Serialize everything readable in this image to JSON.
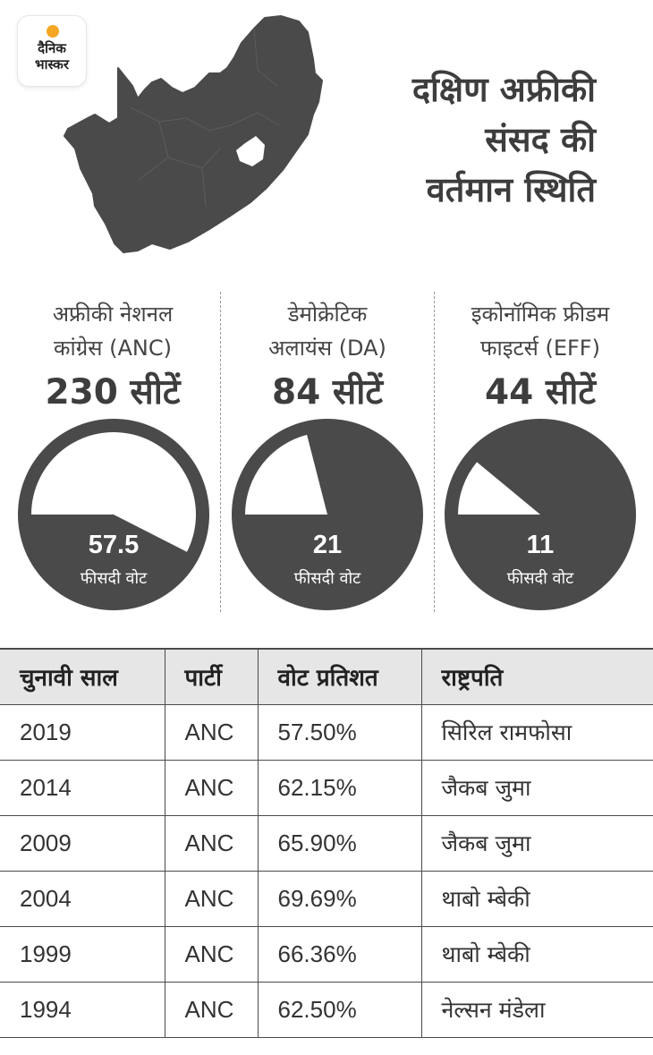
{
  "brand": {
    "line1": "दैनिक",
    "line2": "भास्कर"
  },
  "title": {
    "line1": "दक्षिण अफ्रीकी",
    "line2": "संसद की",
    "line3": "वर्तमान स्थिति"
  },
  "colors": {
    "dark": "#4a4a4a",
    "text": "#3d3d3d",
    "header_bg": "#e6e6e6",
    "logo_sun": "#f5a623"
  },
  "parties": [
    {
      "name_line1": "अफ्रीकी नेशनल",
      "name_line2": "कांग्रेस (ANC)",
      "seats": "230 सीटें",
      "vote": "57.5",
      "vote_label": "फीसदी वोट"
    },
    {
      "name_line1": "डेमोक्रेटिक",
      "name_line2": "अलायंस (DA)",
      "seats": "84 सीटें",
      "vote": "21",
      "vote_label": "फीसदी वोट"
    },
    {
      "name_line1": "इकोनॉमिक फ्रीडम",
      "name_line2": "फाइटर्स (EFF)",
      "seats": "44 सीटें",
      "vote": "11",
      "vote_label": "फीसदी वोट"
    }
  ],
  "chart_data": {
    "type": "pie",
    "categories": [
      "अफ्रीकी नेशनल कांग्रेस (ANC)",
      "डेमोक्रेटिक अलायंस (DA)",
      "इकोनॉमिक फ्रीडम फाइटर्स (EFF)"
    ],
    "values": [
      57.5,
      21,
      11
    ],
    "seats": [
      230,
      84,
      44
    ],
    "unit": "फीसदी वोट"
  },
  "table": {
    "headers": [
      "चुनावी साल",
      "पार्टी",
      "वोट प्रतिशत",
      "राष्ट्रपति"
    ],
    "rows": [
      [
        "2019",
        "ANC",
        "57.50%",
        "सिरिल रामफोसा"
      ],
      [
        "2014",
        "ANC",
        "62.15%",
        "जैकब जुमा"
      ],
      [
        "2009",
        "ANC",
        "65.90%",
        "जैकब जुमा"
      ],
      [
        "2004",
        "ANC",
        "69.69%",
        "थाबो म्बेकी"
      ],
      [
        "1999",
        "ANC",
        "66.36%",
        "थाबो म्बेकी"
      ],
      [
        "1994",
        "ANC",
        "62.50%",
        "नेल्सन मंडेला"
      ]
    ]
  }
}
